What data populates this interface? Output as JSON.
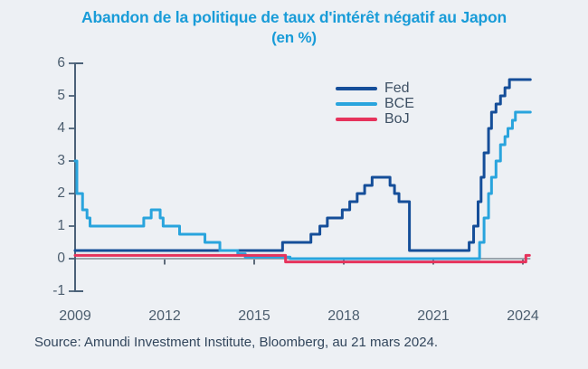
{
  "title": {
    "line1": "Abandon de la politique de taux d'intérêt négatif au Japon",
    "line2": "(en %)"
  },
  "source": {
    "text": "Source: Amundi Investment Institute, Bloomberg, au 21 mars 2024."
  },
  "colors": {
    "background": "#edf0f4",
    "title": "#199cd8",
    "axis": "#4b6178",
    "zero_line": "#8f99a3",
    "tick_text": "#4b5d6e",
    "legend_text": "#3e5064",
    "source_text": "#32465c",
    "fed": "#154e99",
    "bce": "#29a4dd",
    "boj": "#e6335c"
  },
  "chart_data": {
    "type": "line",
    "title": "Abandon de la politique de taux d'intérêt négatif au Japon",
    "subtitle": "(en %)",
    "ylabel": "%",
    "xlabel": "",
    "grid": false,
    "legend_position": "upper-center",
    "x_axis": {
      "ticks": [
        2009,
        2012,
        2015,
        2018,
        2021,
        2024
      ],
      "range": [
        2009,
        2025.2
      ]
    },
    "y_axis": {
      "ticks": [
        -1,
        0,
        1,
        2,
        3,
        4,
        5,
        6
      ],
      "range": [
        -1,
        6
      ]
    },
    "series": [
      {
        "name": "Fed",
        "color": "#154e99",
        "points": [
          [
            2009.0,
            0.25
          ],
          [
            2015.95,
            0.5
          ],
          [
            2016.9,
            0.75
          ],
          [
            2017.2,
            1.0
          ],
          [
            2017.45,
            1.25
          ],
          [
            2017.95,
            1.5
          ],
          [
            2018.2,
            1.75
          ],
          [
            2018.45,
            2.0
          ],
          [
            2018.7,
            2.25
          ],
          [
            2018.95,
            2.5
          ],
          [
            2019.55,
            2.25
          ],
          [
            2019.7,
            2.0
          ],
          [
            2019.85,
            1.75
          ],
          [
            2020.2,
            0.25
          ],
          [
            2022.2,
            0.5
          ],
          [
            2022.35,
            1.0
          ],
          [
            2022.5,
            1.75
          ],
          [
            2022.6,
            2.5
          ],
          [
            2022.7,
            3.25
          ],
          [
            2022.85,
            4.0
          ],
          [
            2022.95,
            4.5
          ],
          [
            2023.1,
            4.75
          ],
          [
            2023.25,
            5.0
          ],
          [
            2023.4,
            5.25
          ],
          [
            2023.55,
            5.5
          ],
          [
            2024.25,
            5.5
          ]
        ]
      },
      {
        "name": "BCE",
        "color": "#29a4dd",
        "points": [
          [
            2009.0,
            3.0
          ],
          [
            2009.06,
            2.0
          ],
          [
            2009.25,
            1.5
          ],
          [
            2009.4,
            1.25
          ],
          [
            2009.5,
            1.0
          ],
          [
            2011.3,
            1.25
          ],
          [
            2011.55,
            1.5
          ],
          [
            2011.85,
            1.25
          ],
          [
            2011.95,
            1.0
          ],
          [
            2012.5,
            0.75
          ],
          [
            2013.35,
            0.5
          ],
          [
            2013.85,
            0.25
          ],
          [
            2014.45,
            0.15
          ],
          [
            2014.7,
            0.05
          ],
          [
            2016.2,
            0.0
          ],
          [
            2022.55,
            0.5
          ],
          [
            2022.7,
            1.25
          ],
          [
            2022.85,
            2.0
          ],
          [
            2022.95,
            2.5
          ],
          [
            2023.1,
            3.0
          ],
          [
            2023.25,
            3.5
          ],
          [
            2023.4,
            3.75
          ],
          [
            2023.5,
            4.0
          ],
          [
            2023.65,
            4.25
          ],
          [
            2023.75,
            4.5
          ],
          [
            2024.25,
            4.5
          ]
        ]
      },
      {
        "name": "BoJ",
        "color": "#e6335c",
        "points": [
          [
            2009.0,
            0.1
          ],
          [
            2016.05,
            -0.1
          ],
          [
            2024.1,
            0.1
          ],
          [
            2024.22,
            0.1
          ]
        ]
      }
    ]
  }
}
